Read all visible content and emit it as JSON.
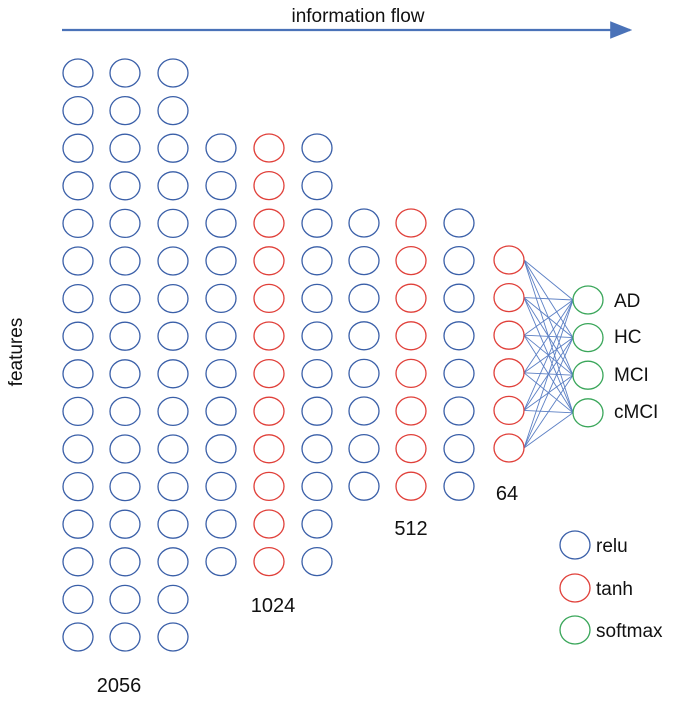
{
  "title": "information flow",
  "y_axis_label": "features",
  "colors": {
    "relu": "#3a5fa8",
    "tanh": "#e0403a",
    "softmax": "#3aa65a",
    "arrow": "#4a72b8",
    "connection": "#5b7fc4"
  },
  "layers": [
    {
      "activation": "relu",
      "nodes": 16
    },
    {
      "activation": "relu",
      "nodes": 16
    },
    {
      "activation": "relu",
      "nodes": 16
    },
    {
      "activation": "relu",
      "nodes": 12
    },
    {
      "activation": "tanh",
      "nodes": 12
    },
    {
      "activation": "relu",
      "nodes": 12
    },
    {
      "activation": "relu",
      "nodes": 8
    },
    {
      "activation": "tanh",
      "nodes": 8
    },
    {
      "activation": "relu",
      "nodes": 8
    },
    {
      "activation": "tanh",
      "nodes": 6
    },
    {
      "activation": "softmax",
      "nodes": 4
    }
  ],
  "layer_sizes": [
    "2056",
    "1024",
    "512",
    "64"
  ],
  "output_classes": [
    "AD",
    "HC",
    "MCI",
    "cMCI"
  ],
  "legend": [
    {
      "key": "relu",
      "label": "relu"
    },
    {
      "key": "tanh",
      "label": "tanh"
    },
    {
      "key": "softmax",
      "label": "softmax"
    }
  ]
}
